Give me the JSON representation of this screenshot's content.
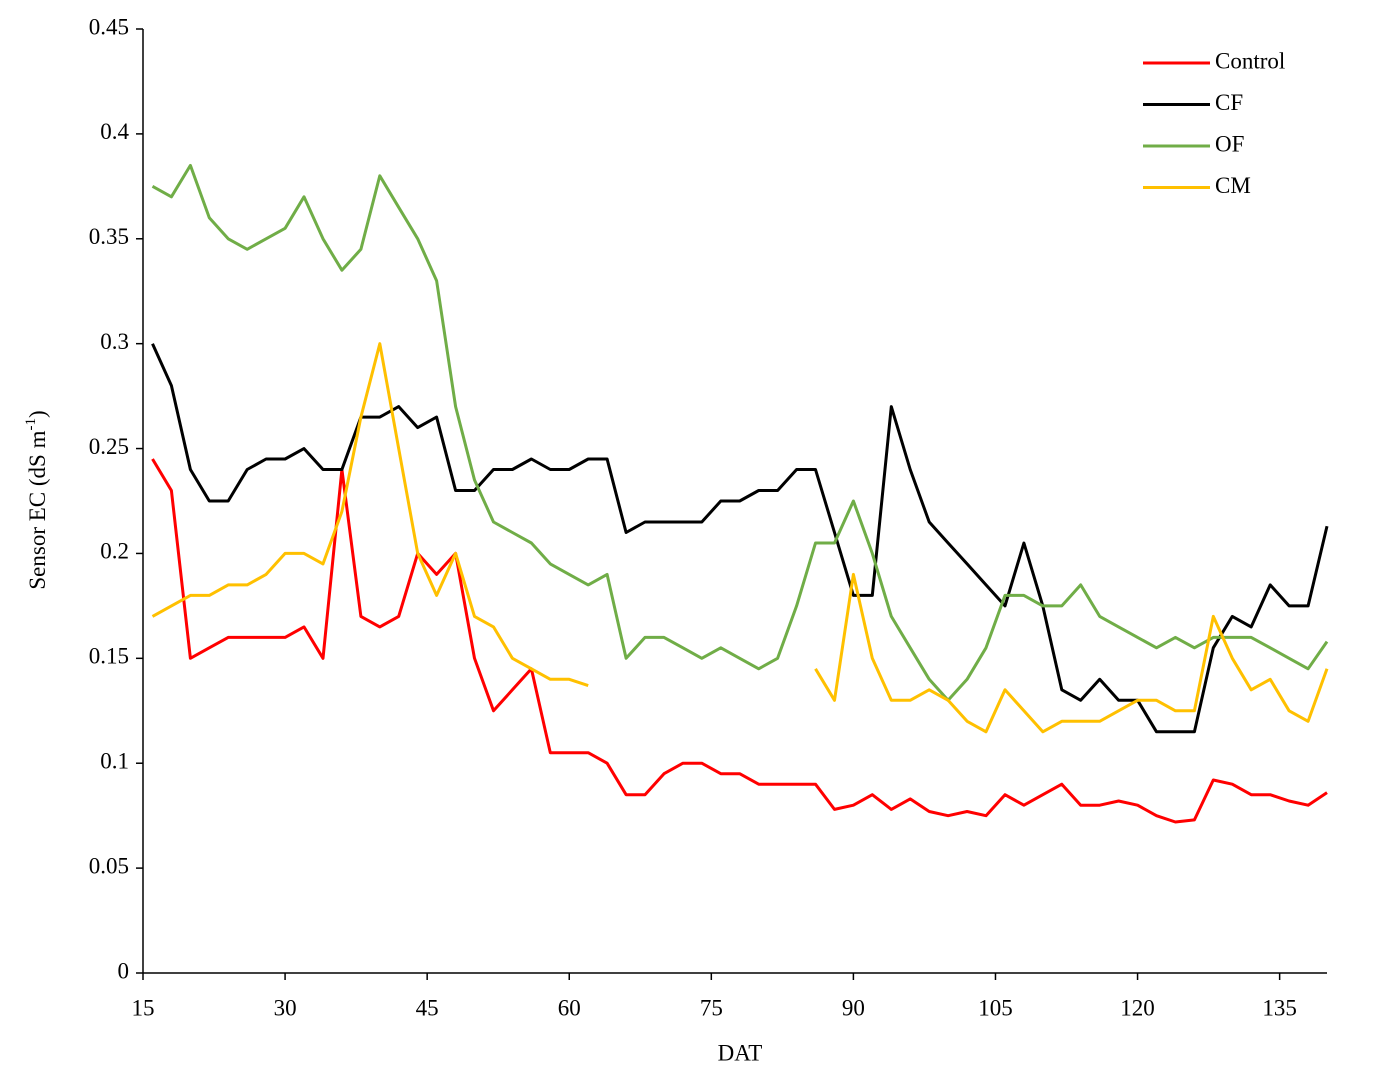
{
  "chart_data": {
    "type": "line",
    "xlabel": "DAT",
    "ylabel": [
      "Sensor EC (dS m",
      "-1",
      ")"
    ],
    "x": [
      16,
      18,
      20,
      22,
      24,
      26,
      28,
      30,
      32,
      34,
      36,
      38,
      40,
      42,
      44,
      46,
      48,
      50,
      52,
      54,
      56,
      58,
      60,
      62,
      64,
      66,
      68,
      70,
      72,
      74,
      76,
      78,
      80,
      82,
      84,
      86,
      88,
      90,
      92,
      94,
      96,
      98,
      100,
      102,
      104,
      106,
      108,
      110,
      112,
      114,
      116,
      118,
      120,
      122,
      124,
      126,
      128,
      130,
      132,
      134,
      136,
      138,
      140
    ],
    "series": [
      {
        "name": "Control",
        "color": "#ff0000",
        "values": [
          0.245,
          0.23,
          0.15,
          0.155,
          0.16,
          0.16,
          0.16,
          0.16,
          0.165,
          0.15,
          0.24,
          0.17,
          0.165,
          0.17,
          0.2,
          0.19,
          0.2,
          0.15,
          0.125,
          0.135,
          0.145,
          0.105,
          0.105,
          0.105,
          0.1,
          0.085,
          0.085,
          0.095,
          0.1,
          0.1,
          0.095,
          0.095,
          0.09,
          0.09,
          0.09,
          0.09,
          0.078,
          0.08,
          0.085,
          0.078,
          0.083,
          0.077,
          0.075,
          0.077,
          0.075,
          0.085,
          0.08,
          0.085,
          0.09,
          0.08,
          0.08,
          0.082,
          0.08,
          0.075,
          0.072,
          0.073,
          0.092,
          0.09,
          0.085,
          0.085,
          0.082,
          0.08,
          0.086
        ]
      },
      {
        "name": "CF",
        "color": "#000000",
        "values": [
          0.3,
          0.28,
          0.24,
          0.225,
          0.225,
          0.24,
          0.245,
          0.245,
          0.25,
          0.24,
          0.24,
          0.265,
          0.265,
          0.27,
          0.26,
          0.265,
          0.23,
          0.23,
          0.24,
          0.24,
          0.245,
          0.24,
          0.24,
          0.245,
          0.245,
          0.21,
          0.215,
          0.215,
          0.215,
          0.215,
          0.225,
          0.225,
          0.23,
          0.23,
          0.24,
          0.24,
          0.21,
          0.18,
          0.18,
          0.27,
          0.24,
          0.215,
          0.205,
          0.195,
          0.185,
          0.175,
          0.205,
          0.175,
          0.135,
          0.13,
          0.14,
          0.13,
          0.13,
          0.115,
          0.115,
          0.115,
          0.155,
          0.17,
          0.165,
          0.185,
          0.175,
          0.175,
          0.213
        ]
      },
      {
        "name": "OF",
        "color": "#70ad47",
        "values": [
          0.375,
          0.37,
          0.385,
          0.36,
          0.35,
          0.345,
          0.35,
          0.355,
          0.37,
          0.35,
          0.335,
          0.345,
          0.38,
          0.365,
          0.35,
          0.33,
          0.27,
          0.235,
          0.215,
          0.21,
          0.205,
          0.195,
          0.19,
          0.185,
          0.19,
          0.15,
          0.16,
          0.16,
          0.155,
          0.15,
          0.155,
          0.15,
          0.145,
          0.15,
          0.175,
          0.205,
          0.205,
          0.225,
          0.2,
          0.17,
          0.155,
          0.14,
          0.13,
          0.14,
          0.155,
          0.18,
          0.18,
          0.175,
          0.175,
          0.185,
          0.17,
          0.165,
          0.16,
          0.155,
          0.16,
          0.155,
          0.16,
          0.16,
          0.16,
          0.155,
          0.15,
          0.145,
          0.158
        ]
      },
      {
        "name": "CM",
        "color": "#ffc000",
        "values": [
          0.17,
          0.175,
          0.18,
          0.18,
          0.185,
          0.185,
          0.19,
          0.2,
          0.2,
          0.195,
          0.22,
          0.265,
          0.3,
          0.25,
          0.2,
          0.18,
          0.2,
          0.17,
          0.165,
          0.15,
          0.145,
          0.14,
          0.14,
          0.137,
          null,
          null,
          null,
          null,
          null,
          null,
          null,
          null,
          null,
          null,
          null,
          0.145,
          0.13,
          0.19,
          0.15,
          0.13,
          0.13,
          0.135,
          0.13,
          0.12,
          0.115,
          0.135,
          0.125,
          0.115,
          0.12,
          0.12,
          0.12,
          0.125,
          0.13,
          0.13,
          0.125,
          0.125,
          0.17,
          0.15,
          0.135,
          0.14,
          0.125,
          0.12,
          0.145
        ]
      }
    ],
    "xlim": [
      15,
      140
    ],
    "xticks": [
      15,
      30,
      45,
      60,
      75,
      90,
      105,
      120,
      135
    ],
    "ylim": [
      0,
      0.45
    ],
    "yticks": [
      0,
      0.05,
      0.1,
      0.15,
      0.2,
      0.25,
      0.3,
      0.35,
      0.4,
      0.45
    ],
    "legend": "upper-right",
    "grid": false
  }
}
